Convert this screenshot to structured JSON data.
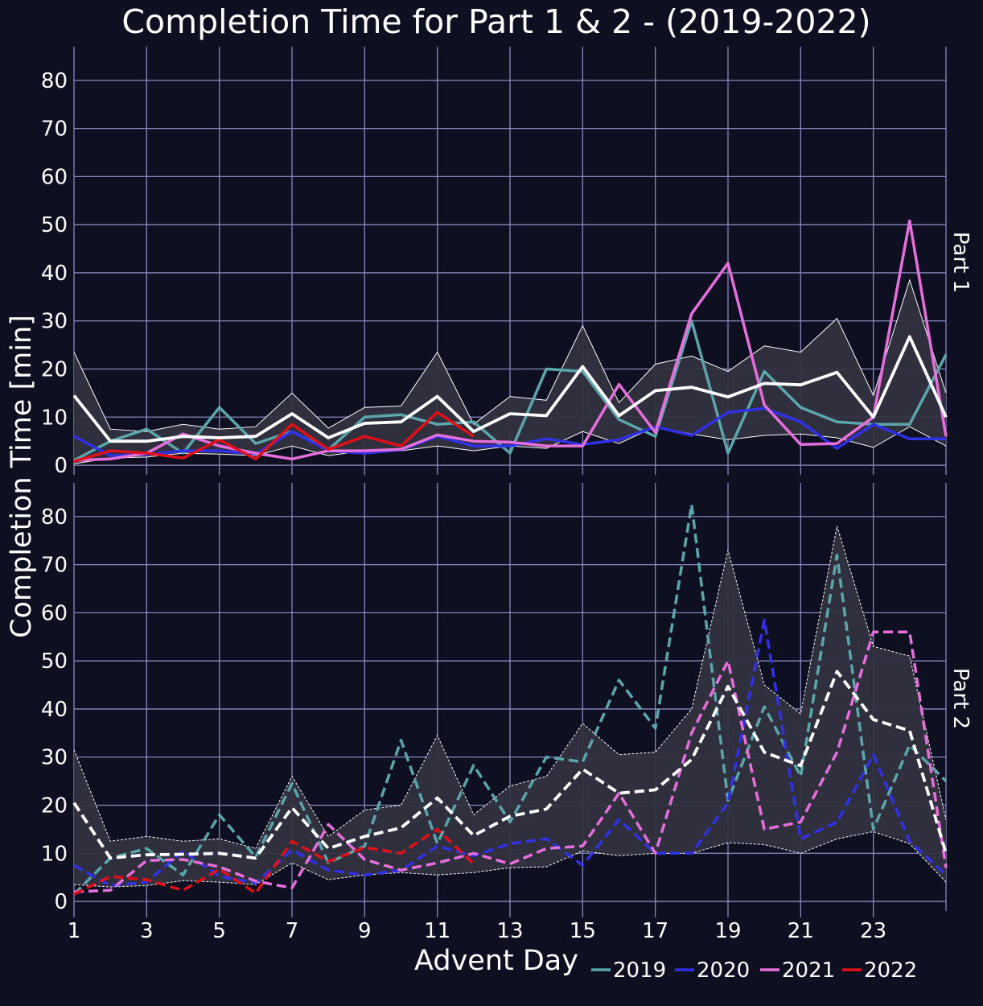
{
  "chart_data": {
    "type": "line",
    "title": "Completion Time for Part 1 & 2 - (2019-2022)",
    "xlabel": "Advent Day",
    "ylabel": "Completion Time [min]",
    "x_ticks": [
      1,
      3,
      5,
      7,
      9,
      11,
      13,
      15,
      17,
      19,
      21,
      23
    ],
    "y_ticks": [
      0,
      10,
      20,
      30,
      40,
      50,
      60,
      70,
      80
    ],
    "xlim": [
      1,
      25
    ],
    "ylim": [
      -2,
      87
    ],
    "grid": true,
    "legend": {
      "placement": "bottom-right",
      "entries": [
        "2019",
        "2020",
        "2021",
        "2022"
      ]
    },
    "colors": {
      "background": "#0e0f20",
      "grid": "#8a88c2",
      "band": "#33323f",
      "mean": "#ffffff",
      "2019": "#5aa6ab",
      "2020": "#3030e6",
      "2021": "#e66fdc",
      "2022": "#e0101a"
    },
    "panels": [
      {
        "label": "Part 1",
        "line_style": "solid",
        "band_upper": [
          23.5,
          7.5,
          7,
          8.5,
          7.5,
          8,
          15,
          7.7,
          12,
          12.3,
          23.5,
          8.5,
          14.3,
          13.5,
          29,
          13,
          21,
          22.7,
          19.5,
          24.8,
          23.5,
          30.5,
          14.5,
          38.5,
          15
        ],
        "band_lower": [
          0.3,
          1.5,
          1.7,
          2.5,
          2.3,
          2,
          4,
          2,
          3,
          3,
          4,
          3,
          4,
          3.5,
          7,
          4.5,
          8,
          6.5,
          5.3,
          6.2,
          6.5,
          5.7,
          3.7,
          8,
          4
        ],
        "mean": [
          14.5,
          5,
          5,
          6,
          5.7,
          6,
          10.7,
          5.7,
          8.7,
          9,
          14.3,
          7,
          10.7,
          10.3,
          20.5,
          10.3,
          15.5,
          16.2,
          14.2,
          17,
          16.7,
          19.3,
          10,
          26.7,
          10
        ],
        "series": [
          {
            "name": "2019",
            "values": [
              1,
              5,
              7.5,
              2.5,
              12,
              4.5,
              7,
              3.2,
              10,
              10.5,
              8.5,
              9,
              2.5,
              20,
              19.5,
              9.5,
              6,
              30,
              2.5,
              19.5,
              12,
              9,
              8.5,
              8.5,
              23
            ]
          },
          {
            "name": "2020",
            "values": [
              6,
              2,
              2.2,
              3,
              3,
              2.3,
              7,
              3,
              2.5,
              3.2,
              6,
              4,
              4,
              5.5,
              4.3,
              5.3,
              8,
              6.2,
              11,
              11.8,
              9,
              3.5,
              8.5,
              5.5,
              5.5
            ]
          },
          {
            "name": "2021",
            "values": [
              1,
              1.3,
              2.5,
              6.5,
              4,
              2.5,
              1.3,
              3,
              3,
              3.3,
              6.3,
              5,
              4.8,
              4,
              4,
              16.8,
              6.8,
              31.5,
              42,
              12.5,
              4.3,
              4.5,
              10,
              50.8,
              6
            ]
          },
          {
            "name": "2022",
            "values": [
              0.8,
              3,
              2.5,
              1.5,
              5.3,
              1.3,
              8.5,
              3.3,
              6,
              4,
              11,
              6
            ]
          }
        ]
      },
      {
        "label": "Part 2",
        "line_style": "dashed",
        "band_upper": [
          31.5,
          12.5,
          13.5,
          12.5,
          13,
          11,
          26,
          13.5,
          19,
          20,
          34.5,
          18,
          24,
          26,
          37,
          30.5,
          31,
          40,
          73,
          45,
          39,
          78,
          53,
          51,
          17
        ],
        "band_lower": [
          3.5,
          3,
          3.3,
          4.3,
          4,
          3.5,
          8,
          4.5,
          5.5,
          6,
          5.5,
          6,
          7,
          7.2,
          10.5,
          9.5,
          10,
          10,
          12.2,
          11.8,
          10,
          13,
          14.5,
          12,
          4
        ],
        "mean": [
          20.5,
          9,
          9.7,
          9.8,
          10,
          9,
          19.5,
          11,
          13.5,
          15.3,
          21.5,
          13.7,
          17.7,
          19.2,
          27.5,
          22.5,
          23.2,
          29.5,
          44.7,
          31,
          28.2,
          47.8,
          37.8,
          35.5,
          10
        ],
        "series": [
          {
            "name": "2019",
            "values": [
              1.5,
              9,
              11,
              5.5,
              18,
              9.2,
              24.5,
              8,
              11.5,
              33.5,
              12,
              28.3,
              16.5,
              30,
              29,
              46,
              36,
              82.5,
              21,
              40.5,
              26,
              72,
              15,
              32.5,
              25
            ]
          },
          {
            "name": "2020",
            "values": [
              7.5,
              3.3,
              4,
              10.5,
              5.2,
              3.8,
              10.7,
              6.5,
              5.5,
              6.5,
              11.5,
              9.5,
              12,
              13,
              7.5,
              17,
              10,
              10,
              20.5,
              58.5,
              13,
              16.5,
              30.5,
              12.5,
              5.5
            ]
          },
          {
            "name": "2021",
            "values": [
              2,
              2.3,
              8.5,
              8.7,
              7.2,
              4.2,
              2.8,
              16,
              8.7,
              6.5,
              8,
              10,
              7.8,
              11,
              11.5,
              22.5,
              10,
              35,
              50,
              15,
              16.5,
              31,
              56,
              56,
              7
            ]
          },
          {
            "name": "2022",
            "values": [
              1.5,
              5.2,
              4.5,
              2.3,
              6.7,
              1.7,
              12.5,
              8.3,
              11.2,
              10,
              15,
              7.8
            ]
          }
        ]
      }
    ]
  }
}
